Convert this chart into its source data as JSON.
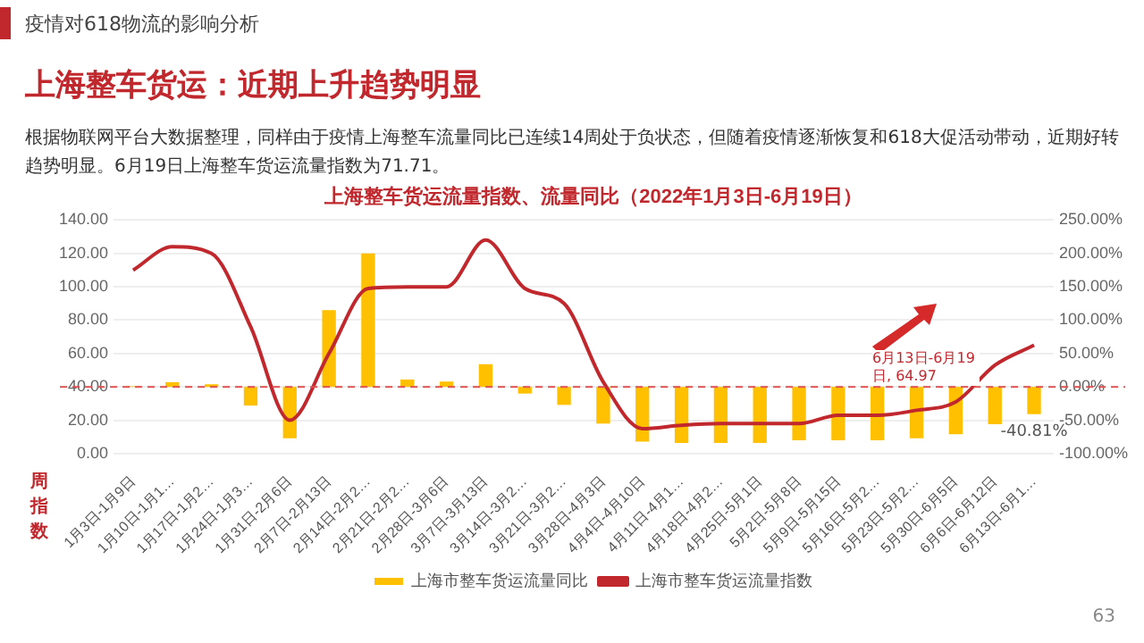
{
  "chart_data": {
    "type": "bar",
    "title": "上海整车货运流量指数、流量同比（2022年1月3日-6月19日）",
    "xlabel": "周指数",
    "categories": [
      "1月3日-1月9日",
      "1月10日-1月1…",
      "1月17日-1月2…",
      "1月24日-1月3…",
      "1月31日-2月6日",
      "2月7日-2月13日",
      "2月14日-2月2…",
      "2月21日-2月2…",
      "2月28日-3月6日",
      "3月7日-3月13日",
      "3月14日-3月2…",
      "3月21日-3月2…",
      "3月28日-4月3日",
      "4月4日-4月10日",
      "4月11日-4月1…",
      "4月18日-4月2…",
      "4月25日-5月1日",
      "5月2日-5月8日",
      "5月9日-5月15日",
      "5月16日-5月2…",
      "5月23日-5月2…",
      "5月30日-6月5日",
      "6月6日-6月12日",
      "6月13日-6月1…"
    ],
    "series": [
      {
        "name": "上海市整车货运流量同比",
        "axis": "y2",
        "color": "#ffc000",
        "values": [
          1,
          7,
          4,
          -28,
          -77,
          115,
          200,
          11,
          8,
          34,
          -10,
          -27,
          -55,
          -82,
          -84,
          -84,
          -84,
          -80,
          -80,
          -80,
          -77,
          -71,
          -56,
          -40.81
        ],
        "value_labels": [
          null,
          null,
          null,
          null,
          null,
          null,
          null,
          null,
          null,
          null,
          null,
          null,
          null,
          null,
          null,
          null,
          null,
          null,
          null,
          null,
          null,
          null,
          null,
          "-40.81%"
        ]
      },
      {
        "name": "上海市整车货运流量指数",
        "type": "line",
        "color": "#c0282d",
        "values": [
          110,
          124,
          120,
          76,
          20,
          60,
          99,
          100,
          100,
          128,
          99,
          90,
          43,
          15,
          17,
          18,
          18,
          18,
          23,
          23,
          26,
          31,
          53,
          64.97
        ]
      }
    ],
    "ylim": [
      0,
      140
    ],
    "yticks": [
      {
        "value": 0,
        "label": "0.00"
      },
      {
        "value": 20,
        "label": "20.00"
      },
      {
        "value": 40,
        "label": "40.00"
      },
      {
        "value": 60,
        "label": "60.00"
      },
      {
        "value": 80,
        "label": "80.00"
      },
      {
        "value": 100,
        "label": "100.00"
      },
      {
        "value": 120,
        "label": "120.00"
      },
      {
        "value": 140,
        "label": "140.00"
      }
    ],
    "y2lim": [
      -100,
      250
    ],
    "y2ticks": [
      {
        "value": -100,
        "label": "-100.00%"
      },
      {
        "value": -50,
        "label": "-50.00%"
      },
      {
        "value": 0,
        "label": "0.00%"
      },
      {
        "value": 50,
        "label": "50.00%"
      },
      {
        "value": 100,
        "label": "100.00%"
      },
      {
        "value": 150,
        "label": "150.00%"
      },
      {
        "value": 200,
        "label": "200.00%"
      },
      {
        "value": 250,
        "label": "250.00%"
      }
    ],
    "ref_lines": [
      {
        "axis": "y2",
        "value": 0,
        "color": "#e05050",
        "line_style": "dashed"
      }
    ],
    "grid": "y",
    "legend": "bottom",
    "marker": "none",
    "line_style": "solid",
    "annotations": [
      "疫情对618物流的影响分析",
      "上海整车货运：近期上升趋势明显",
      "根据物联网平台大数据整理，同样由于疫情上海整车流量同比已连续14周处于负状态，但随着疫情逐渐恢复和618大促活动带动，近期好转趋势明显。6月19日上海整车货运流量指数为71.71。",
      "6月13日-6月19日, 64.97",
      "63"
    ]
  }
}
